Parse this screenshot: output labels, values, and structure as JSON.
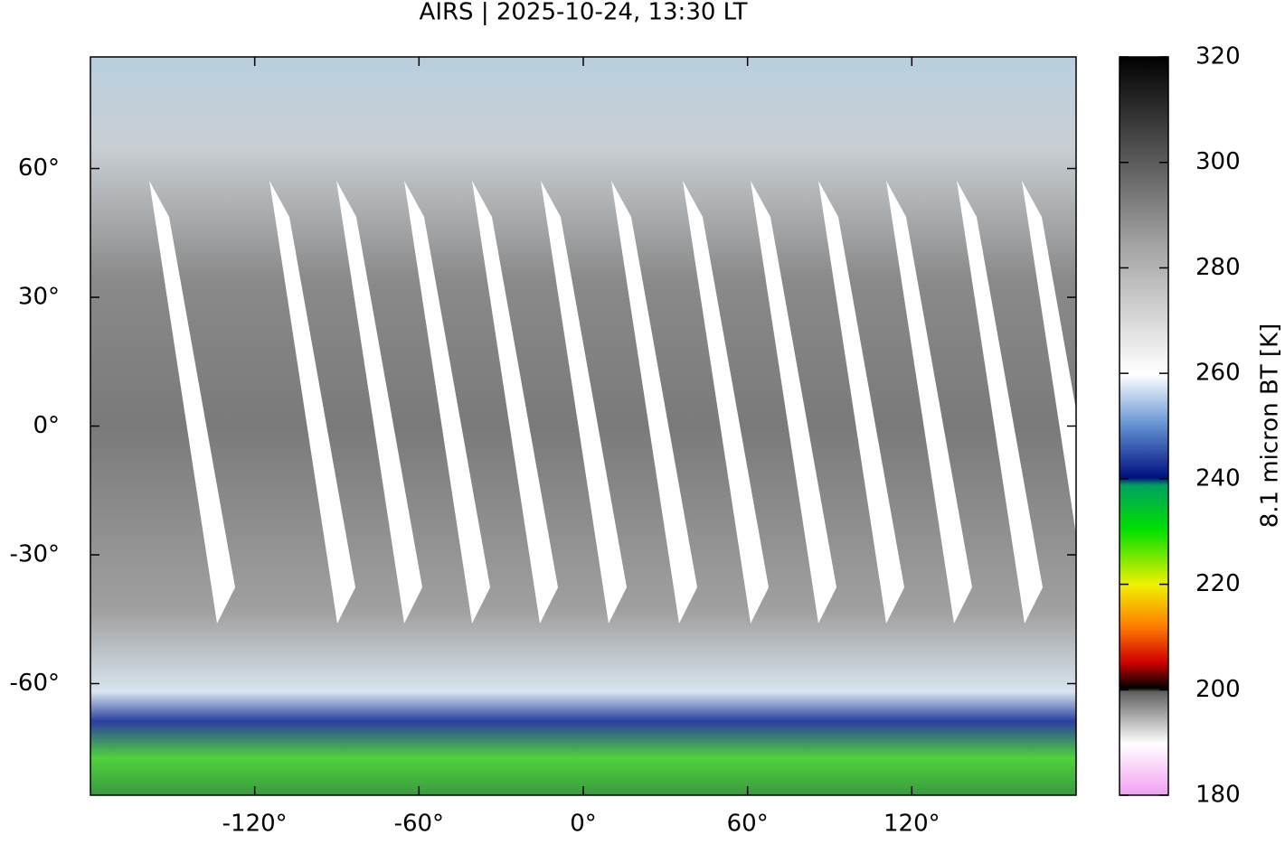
{
  "title": "AIRS | 2025-10-24, 13:30 LT",
  "map": {
    "xlim": [
      -180,
      180
    ],
    "ylim": [
      -86,
      86
    ],
    "xticks": [
      {
        "value": -120,
        "label": "-120°"
      },
      {
        "value": -60,
        "label": "-60°"
      },
      {
        "value": 0,
        "label": "0°"
      },
      {
        "value": 60,
        "label": "60°"
      },
      {
        "value": 120,
        "label": "120°"
      }
    ],
    "yticks": [
      {
        "value": -60,
        "label": "-60°"
      },
      {
        "value": -30,
        "label": "-30°"
      },
      {
        "value": 0,
        "label": "0°"
      },
      {
        "value": 30,
        "label": "30°"
      },
      {
        "value": 60,
        "label": "60°"
      }
    ]
  },
  "colorbar": {
    "label": "8.1 micron BT [K]",
    "lim": [
      180,
      320
    ],
    "ticks": [
      180,
      200,
      220,
      240,
      260,
      280,
      300,
      320
    ]
  }
}
